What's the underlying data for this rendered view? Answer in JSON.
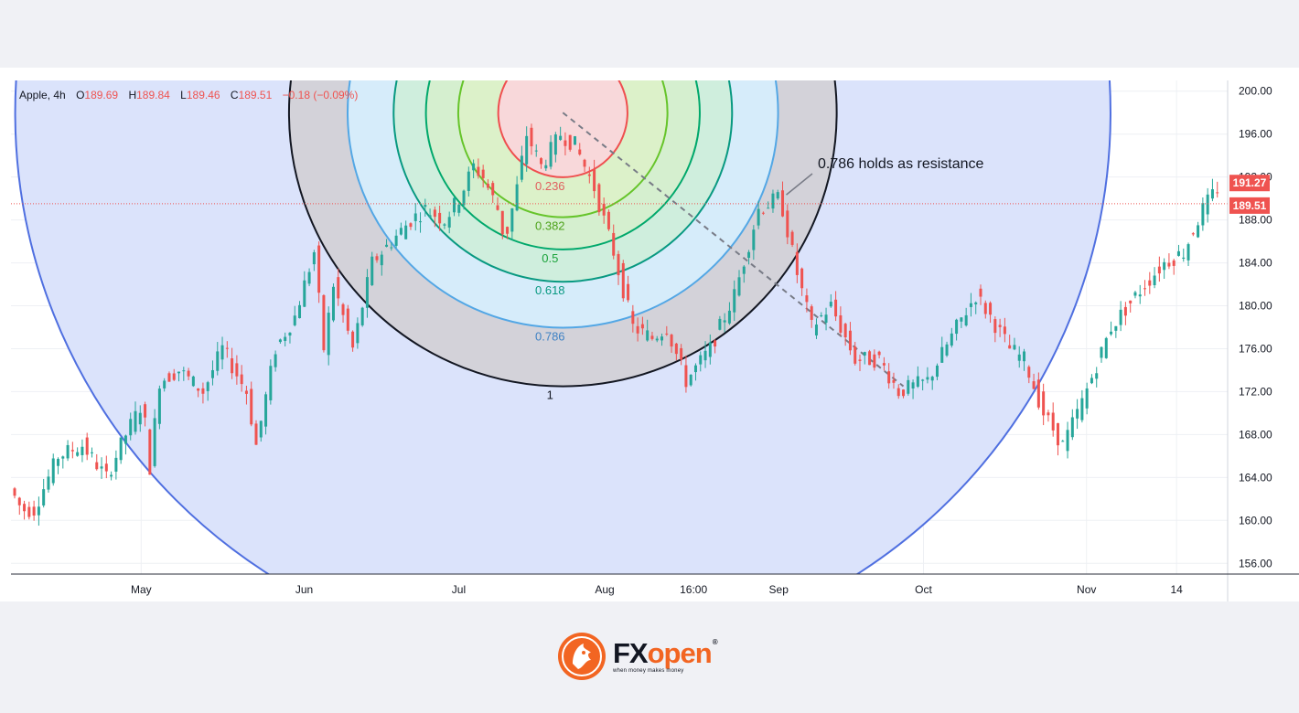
{
  "legend": {
    "ticker": "Apple, 4h",
    "open_label": "O",
    "open": "189.69",
    "high_label": "H",
    "high": "189.84",
    "low_label": "L",
    "low": "189.46",
    "close_label": "C",
    "close": "189.51",
    "change": "−0.18 (−0.09%)"
  },
  "annotation": "0.786 holds as resistance",
  "logo": {
    "word_fx": "FX",
    "word_open": "open",
    "registered": "®",
    "tagline": "when money makes money"
  },
  "colors": {
    "up": "#26a69a",
    "down": "#ef5350",
    "outer_fill": "#dbe3fb",
    "outer_stroke": "#4f6fe0",
    "ring_1": "#131722",
    "ring_786": "#53a7e5",
    "ring_618": "#089981",
    "ring_5": "#00a86b",
    "ring_382": "#66c42a",
    "ring_236": "#7bbf2e",
    "ring_0": "#ef4f4f",
    "last_price_bg": "#ef5350"
  },
  "chart_data": {
    "type": "candlestick",
    "timeframe": "4h",
    "ylim": [
      155,
      201
    ],
    "y_ticks": [
      "200.00",
      "196.00",
      "192.00",
      "188.00",
      "184.00",
      "180.00",
      "176.00",
      "172.00",
      "168.00",
      "164.00",
      "160.00",
      "156.00"
    ],
    "x_ticks": [
      "May",
      "Jun",
      "Jul",
      "Aug",
      "16:00",
      "Sep",
      "Oct",
      "Nov",
      "14"
    ],
    "price_labels": [
      "191.27",
      "189.51"
    ],
    "last_price": 189.51,
    "price_path": [
      [
        0,
        163
      ],
      [
        5,
        161
      ],
      [
        10,
        161
      ],
      [
        20,
        166
      ],
      [
        30,
        167
      ],
      [
        40,
        164
      ],
      [
        48,
        168
      ],
      [
        55,
        171
      ],
      [
        58,
        165
      ],
      [
        62,
        173
      ],
      [
        70,
        174
      ],
      [
        80,
        172
      ],
      [
        88,
        176
      ],
      [
        98,
        172
      ],
      [
        102,
        167
      ],
      [
        110,
        176
      ],
      [
        118,
        179
      ],
      [
        126,
        185
      ],
      [
        130,
        176
      ],
      [
        134,
        182
      ],
      [
        142,
        176
      ],
      [
        150,
        184
      ],
      [
        158,
        186
      ],
      [
        166,
        188
      ],
      [
        172,
        189
      ],
      [
        180,
        188
      ],
      [
        186,
        190
      ],
      [
        192,
        193
      ],
      [
        196,
        192
      ],
      [
        202,
        189
      ],
      [
        205,
        186
      ],
      [
        210,
        191
      ],
      [
        214,
        196
      ],
      [
        220,
        193
      ],
      [
        228,
        196
      ],
      [
        234,
        195
      ],
      [
        242,
        191
      ],
      [
        250,
        185
      ],
      [
        258,
        178
      ],
      [
        266,
        177
      ],
      [
        272,
        178
      ],
      [
        280,
        173
      ],
      [
        290,
        176
      ],
      [
        300,
        181
      ],
      [
        310,
        189
      ],
      [
        318,
        190
      ],
      [
        320,
        189
      ],
      [
        326,
        183
      ],
      [
        332,
        178
      ],
      [
        340,
        180
      ],
      [
        350,
        175
      ],
      [
        360,
        175
      ],
      [
        368,
        172
      ],
      [
        380,
        173
      ],
      [
        392,
        178
      ],
      [
        400,
        181
      ],
      [
        406,
        179
      ],
      [
        414,
        176
      ],
      [
        420,
        175
      ],
      [
        428,
        170
      ],
      [
        436,
        167
      ],
      [
        444,
        171
      ],
      [
        456,
        178
      ],
      [
        470,
        182
      ],
      [
        478,
        184
      ],
      [
        486,
        185
      ],
      [
        494,
        189
      ],
      [
        500,
        191
      ]
    ],
    "fib_circles": {
      "levels": [
        "0.236",
        "0.382",
        "0.5",
        "0.618",
        "0.786",
        "1"
      ],
      "shown_ratios": [
        0.236,
        0.382,
        0.5,
        0.618,
        0.786,
        1
      ],
      "anchor_high": 198,
      "anchor_low": 172.5,
      "trend_line": [
        [
          198,
          198
        ],
        [
          172.5,
          172.5
        ]
      ]
    }
  }
}
